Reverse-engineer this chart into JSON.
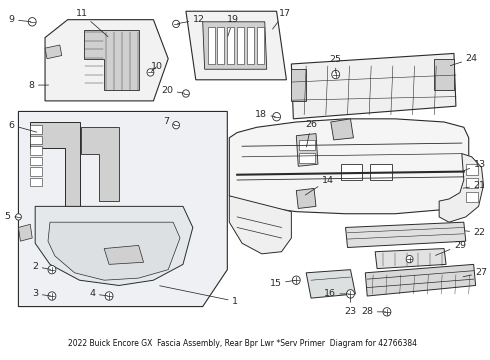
{
  "title": "2022 Buick Encore GX  Fascia Assembly, Rear Bpr Lwr *Serv Primer  Diagram for 42766384",
  "bg_color": "#ffffff",
  "line_color": "#2a2a2a",
  "fig_width": 4.9,
  "fig_height": 3.6,
  "dpi": 100,
  "label_fs": 6.8,
  "fill_light": "#e8e8e8",
  "fill_mid": "#d0d0d0",
  "fill_box": "#eef0f0"
}
